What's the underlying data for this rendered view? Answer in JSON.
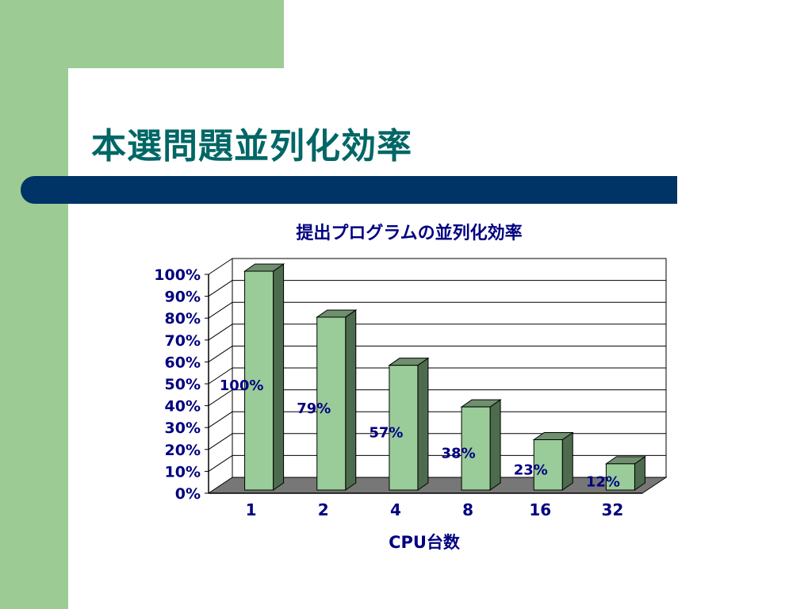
{
  "slide": {
    "title": "本選問題並列化効率"
  },
  "colors": {
    "accent_green": "#9dcb94",
    "title_bar": "#003366",
    "title_text": "#006666",
    "chart_text": "#000080",
    "bar_front": "#99cc99",
    "bar_side": "#4d6b4d",
    "floor": "#777777"
  },
  "chart_data": {
    "type": "bar",
    "title": "提出プログラムの並列化効率",
    "xlabel": "CPU台数",
    "ylabel": "",
    "categories": [
      "1",
      "2",
      "4",
      "8",
      "16",
      "32"
    ],
    "values": [
      100,
      79,
      57,
      38,
      23,
      12
    ],
    "data_labels": [
      "100%",
      "79%",
      "57%",
      "38%",
      "23%",
      "12%"
    ],
    "y_ticks": [
      "0%",
      "10%",
      "20%",
      "30%",
      "40%",
      "50%",
      "60%",
      "70%",
      "80%",
      "90%",
      "100%"
    ],
    "ylim": [
      0,
      100
    ],
    "grid": true,
    "legend": "none",
    "style": "3d"
  }
}
